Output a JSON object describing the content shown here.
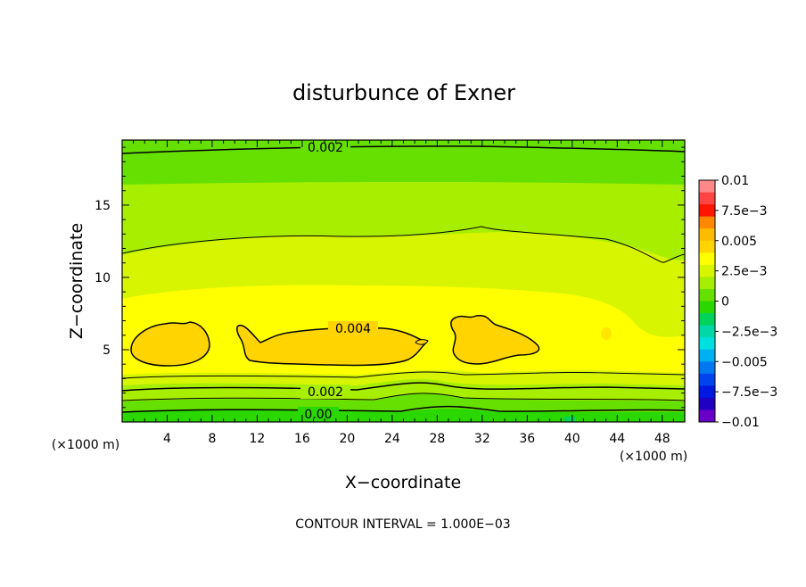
{
  "chart_data": {
    "type": "heatmap",
    "title": "disturbunce of Exner",
    "xlabel": "X−coordinate",
    "ylabel": "Z−coordinate",
    "x_unit_left": "(×1000 m)",
    "x_unit_right": "(×1000 m)",
    "xlim": [
      0,
      50
    ],
    "ylim": [
      0,
      19.5
    ],
    "x_ticks": [
      "4",
      "8",
      "12",
      "16",
      "20",
      "24",
      "28",
      "32",
      "36",
      "40",
      "44",
      "48"
    ],
    "x_tick_values": [
      4,
      8,
      12,
      16,
      20,
      24,
      28,
      32,
      36,
      40,
      44,
      48
    ],
    "y_ticks": [
      "5",
      "10",
      "15"
    ],
    "y_tick_values": [
      5,
      10,
      15
    ],
    "contour_labels": [
      {
        "text": "0.002",
        "x": 22,
        "z": 19
      },
      {
        "text": "0.004",
        "x": 21,
        "z": 6.5
      },
      {
        "text": "0.002",
        "x": 19,
        "z": 2.2
      },
      {
        "text": "0.00",
        "x": 18,
        "z": 0.5
      }
    ],
    "colorbar": {
      "labels": [
        "0.01",
        "7.5e−3",
        "0.005",
        "2.5e−3",
        "0",
        "−2.5e−3",
        "−0.005",
        "−7.5e−3",
        "−0.01"
      ],
      "values": [
        0.01,
        0.0075,
        0.005,
        0.0025,
        0,
        -0.0025,
        -0.005,
        -0.0075,
        -0.01
      ],
      "colors": [
        "#ff8888",
        "#ff4444",
        "#ff1500",
        "#ff8800",
        "#ffbb00",
        "#ffd400",
        "#ffff00",
        "#d8f500",
        "#a8ee00",
        "#66e000",
        "#2ad800",
        "#00d25a",
        "#00d8a8",
        "#00e0e0",
        "#00b0f0",
        "#0078f0",
        "#0044ee",
        "#0018e0",
        "#2000c0",
        "#6800c8"
      ]
    },
    "footer": "CONTOUR INTERVAL = 1.000E−03"
  }
}
